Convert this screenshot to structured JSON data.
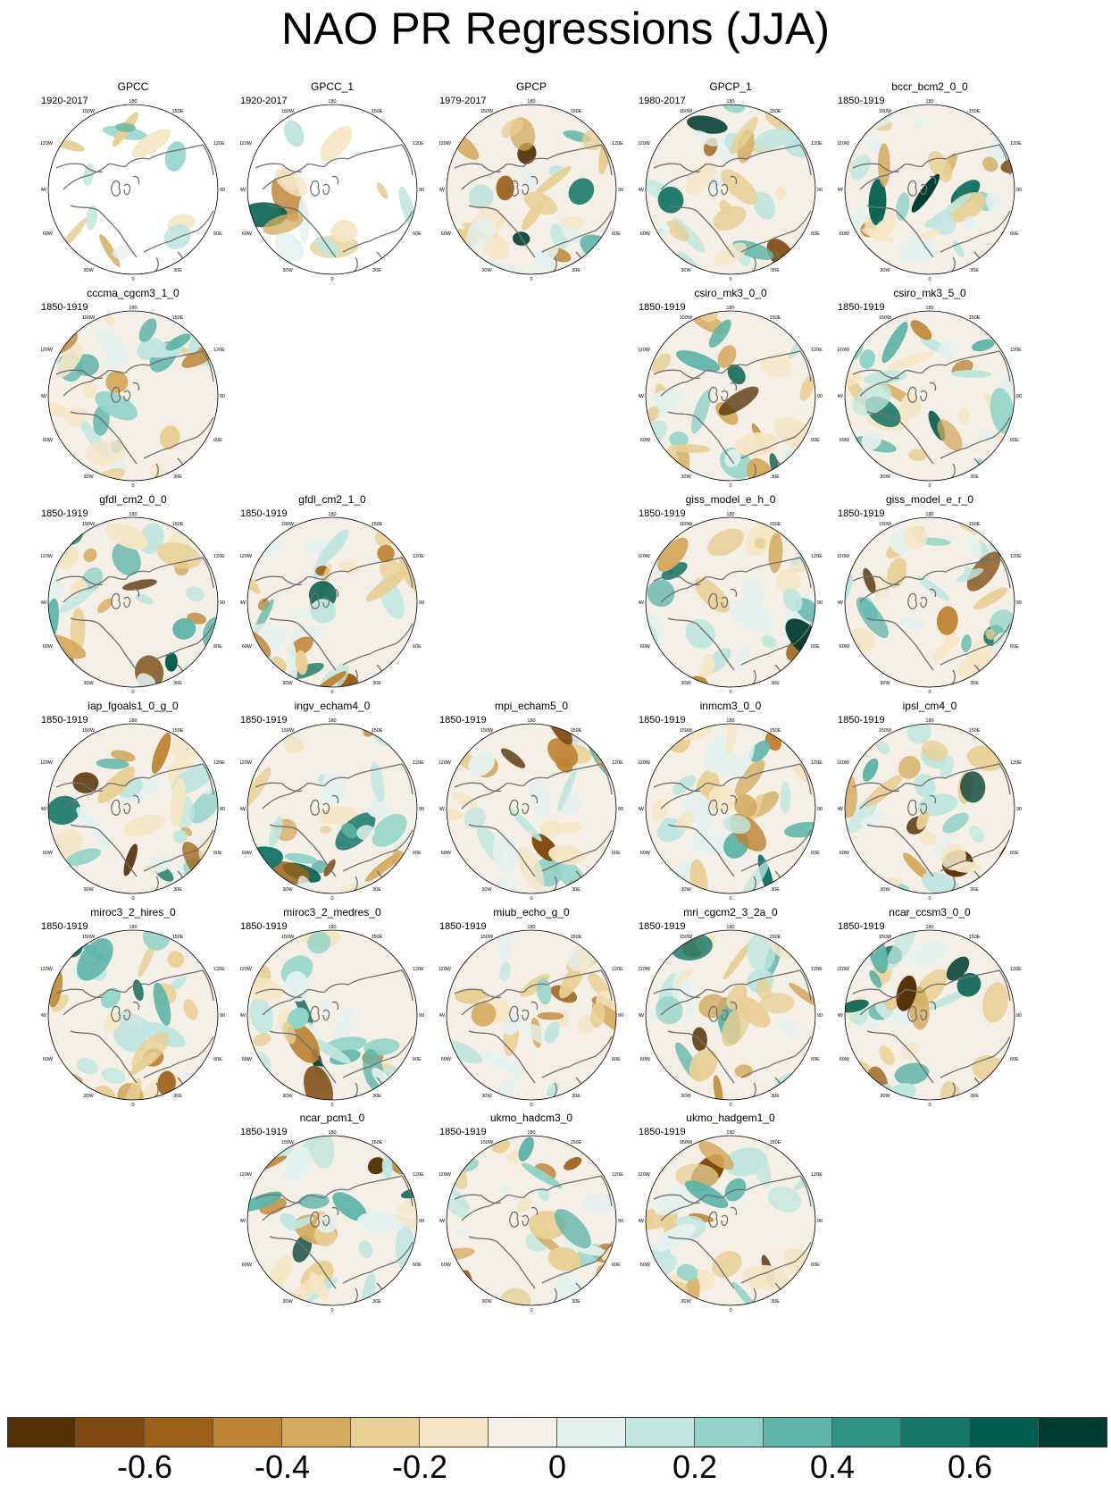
{
  "title": "NAO PR Regressions (JJA)",
  "map_labels": {
    "top": "180",
    "bottom": "0",
    "upper_left": "150W",
    "upper_right": "150E",
    "left_upper": "120W",
    "right_upper": "120E",
    "left": "90W",
    "right": "90E",
    "left_lower": "60W",
    "right_lower": "60E",
    "lower_left": "30W",
    "lower_right": "30E"
  },
  "panels": [
    {
      "name": "GPCC",
      "years": "1920-2017",
      "row": 0,
      "col": 0,
      "land_only": true
    },
    {
      "name": "GPCC_1",
      "years": "1920-2017",
      "row": 0,
      "col": 1,
      "land_only": true
    },
    {
      "name": "GPCP",
      "years": "1979-2017",
      "row": 0,
      "col": 2
    },
    {
      "name": "GPCP_1",
      "years": "1980-2017",
      "row": 0,
      "col": 3
    },
    {
      "name": "bccr_bcm2_0_0",
      "years": "1850-1919",
      "row": 0,
      "col": 4
    },
    {
      "name": "cccma_cgcm3_1_0",
      "years": "1850-1919",
      "row": 1,
      "col": 0
    },
    {
      "name": "csiro_mk3_0_0",
      "years": "1850-1919",
      "row": 1,
      "col": 3
    },
    {
      "name": "csiro_mk3_5_0",
      "years": "1850-1919",
      "row": 1,
      "col": 4
    },
    {
      "name": "gfdl_cm2_0_0",
      "years": "1850-1919",
      "row": 2,
      "col": 0
    },
    {
      "name": "gfdl_cm2_1_0",
      "years": "1850-1919",
      "row": 2,
      "col": 1
    },
    {
      "name": "giss_model_e_h_0",
      "years": "1850-1919",
      "row": 2,
      "col": 3
    },
    {
      "name": "giss_model_e_r_0",
      "years": "1850-1919",
      "row": 2,
      "col": 4
    },
    {
      "name": "iap_fgoals1_0_g_0",
      "years": "1850-1919",
      "row": 3,
      "col": 0
    },
    {
      "name": "ingv_echam4_0",
      "years": "1850-1919",
      "row": 3,
      "col": 1
    },
    {
      "name": "mpi_echam5_0",
      "years": "1850-1919",
      "row": 3,
      "col": 2
    },
    {
      "name": "inmcm3_0_0",
      "years": "1850-1919",
      "row": 3,
      "col": 3
    },
    {
      "name": "ipsl_cm4_0",
      "years": "1850-1919",
      "row": 3,
      "col": 4
    },
    {
      "name": "miroc3_2_hires_0",
      "years": "1850-1919",
      "row": 4,
      "col": 0
    },
    {
      "name": "miroc3_2_medres_0",
      "years": "1850-1919",
      "row": 4,
      "col": 1
    },
    {
      "name": "miub_echo_g_0",
      "years": "1850-1919",
      "row": 4,
      "col": 2
    },
    {
      "name": "mri_cgcm2_3_2a_0",
      "years": "1850-1919",
      "row": 4,
      "col": 3
    },
    {
      "name": "ncar_ccsm3_0_0",
      "years": "1850-1919",
      "row": 4,
      "col": 4
    },
    {
      "name": "ncar_pcm1_0",
      "years": "1850-1919",
      "row": 5,
      "col": 1
    },
    {
      "name": "ukmo_hadcm3_0",
      "years": "1850-1919",
      "row": 5,
      "col": 2
    },
    {
      "name": "ukmo_hadgem1_0",
      "years": "1850-1919",
      "row": 5,
      "col": 3
    }
  ],
  "colorbar": {
    "colors": [
      "#543005",
      "#7f4a0f",
      "#9c6118",
      "#be8332",
      "#d4aa5e",
      "#e8cf94",
      "#f4e6c4",
      "#f3efe6",
      "#e3f0ee",
      "#bfe6df",
      "#91d3c7",
      "#5fb5a8",
      "#2f9384",
      "#167767",
      "#015e4d",
      "#003c30"
    ],
    "ticks": [
      "-0.6",
      "-0.4",
      "-0.2",
      "0",
      "0.2",
      "0.4",
      "0.6"
    ]
  }
}
